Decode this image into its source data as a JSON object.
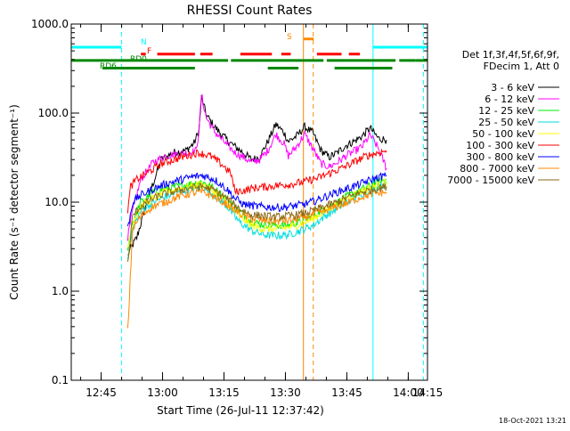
{
  "chart_data": {
    "type": "line",
    "title": "RHESSI Count Rates",
    "xlabel": "Start Time (26-Jul-11 12:37:42)",
    "ylabel": "Count Rate (s⁻¹ detector segment⁻¹)",
    "yscale": "log",
    "ylim": [
      0.1,
      1000
    ],
    "xlim_minutes": [
      0,
      87
    ],
    "xticks": [
      {
        "t": 7.3,
        "label": "12:45"
      },
      {
        "t": 22.3,
        "label": "13:00"
      },
      {
        "t": 37.3,
        "label": "13:15"
      },
      {
        "t": 52.3,
        "label": "13:30"
      },
      {
        "t": 67.3,
        "label": "13:45"
      },
      {
        "t": 82.3,
        "label": "14:00"
      },
      {
        "t": 97.3,
        "label": "14:15"
      }
    ],
    "yticks": [
      {
        "v": 0.1,
        "label": "0.1"
      },
      {
        "v": 1,
        "label": "1.0"
      },
      {
        "v": 10,
        "label": "10.0"
      },
      {
        "v": 100,
        "label": "100.0"
      },
      {
        "v": 1000,
        "label": "1000.0"
      }
    ],
    "grid": false,
    "legend_position": "right",
    "legend_header": [
      "Det 1f,3f,4f,5f,6f,9f,",
      "FDecim 1, Att 0"
    ],
    "series": [
      {
        "name": "3 - 6 keV",
        "color": "#000000",
        "x": [
          13.8,
          14.5,
          16,
          19,
          22,
          25,
          28,
          30,
          31.2,
          31.8,
          33,
          35,
          38,
          40,
          42,
          44,
          46,
          48,
          50,
          52,
          53,
          55,
          57,
          59,
          61,
          63,
          65,
          67,
          69,
          71,
          73,
          75,
          77
        ],
        "y": [
          2.5,
          3,
          4,
          12,
          30,
          36,
          38,
          46,
          64,
          150,
          95,
          70,
          50,
          42,
          36,
          30,
          32,
          48,
          75,
          60,
          48,
          55,
          70,
          60,
          38,
          32,
          36,
          43,
          48,
          55,
          68,
          52,
          50
        ]
      },
      {
        "name": "6 - 12 keV",
        "color": "#ff00ff",
        "x": [
          13.8,
          15,
          17,
          20,
          23,
          26,
          29,
          30.5,
          31.2,
          31.8,
          33,
          35,
          38,
          40,
          42,
          44,
          46,
          48,
          50,
          52,
          53,
          55,
          57,
          59,
          61,
          63,
          65,
          67,
          69,
          71,
          73,
          75,
          77
        ],
        "y": [
          4,
          8,
          18,
          28,
          33,
          35,
          36,
          38,
          64,
          160,
          88,
          62,
          44,
          36,
          32,
          28,
          30,
          38,
          58,
          45,
          33,
          42,
          58,
          40,
          27,
          25,
          28,
          33,
          37,
          42,
          57,
          40,
          24
        ]
      },
      {
        "name": "12 - 25 keV",
        "color": "#00ee00",
        "x": [
          13.8,
          15,
          17,
          20,
          23,
          26,
          29,
          32,
          35,
          38,
          41,
          44,
          47,
          50,
          53,
          56,
          59,
          62,
          65,
          68,
          71,
          74,
          77
        ],
        "y": [
          3,
          6,
          10,
          13,
          14,
          15,
          16,
          17,
          14,
          11,
          8,
          6,
          5.6,
          5.5,
          5.5,
          6,
          7,
          8.5,
          10,
          12,
          14,
          16,
          18
        ]
      },
      {
        "name": "25 - 50 keV",
        "color": "#00dddd",
        "x": [
          13.8,
          15,
          17,
          20,
          23,
          26,
          29,
          32,
          35,
          38,
          41,
          44,
          47,
          50,
          53,
          56,
          59,
          62,
          65,
          68,
          71,
          74,
          77
        ],
        "y": [
          2.5,
          5,
          8,
          10,
          11.5,
          13,
          14,
          15,
          12,
          9,
          6,
          4.8,
          4.3,
          4.2,
          4.3,
          4.8,
          5.5,
          7,
          8.5,
          10.5,
          12.5,
          14.5,
          16
        ]
      },
      {
        "name": "50 - 100 keV",
        "color": "#ffff00",
        "x": [
          13.8,
          15,
          17,
          20,
          23,
          26,
          29,
          32,
          35,
          38,
          41,
          44,
          47,
          50,
          53,
          56,
          59,
          62,
          65,
          68,
          71,
          74,
          77
        ],
        "y": [
          3,
          6,
          9,
          11,
          13,
          14,
          15,
          16,
          13,
          10,
          7,
          5.5,
          5,
          5,
          5.2,
          5.7,
          6.5,
          8,
          9.5,
          11.5,
          13.5,
          15,
          17
        ]
      },
      {
        "name": "100 - 300 keV",
        "color": "#ff0000",
        "x": [
          13.8,
          14.5,
          16,
          19,
          22,
          25,
          28,
          31,
          34,
          37,
          39,
          40,
          42,
          45,
          48,
          51,
          54,
          57,
          60,
          63,
          66,
          69,
          72,
          75,
          77
        ],
        "y": [
          8,
          15,
          18,
          22,
          27,
          30,
          33,
          36,
          33,
          26,
          21,
          13,
          13.5,
          14.5,
          15,
          15.5,
          16,
          17,
          18.5,
          21,
          24,
          28,
          33,
          36,
          38
        ]
      },
      {
        "name": "300 - 800 keV",
        "color": "#0000ff",
        "x": [
          13.8,
          15,
          17,
          20,
          23,
          26,
          29,
          32,
          35,
          38,
          40,
          42,
          45,
          48,
          51,
          54,
          57,
          60,
          63,
          66,
          69,
          72,
          75,
          77
        ],
        "y": [
          5,
          10,
          12,
          14,
          16,
          17.5,
          19,
          20,
          18,
          14,
          11,
          9.5,
          9,
          8.8,
          8.7,
          9,
          9.5,
          10.5,
          12,
          13.5,
          15,
          17,
          19,
          20
        ]
      },
      {
        "name": "800 - 7000 keV",
        "color": "#ff8800",
        "x": [
          13.8,
          15,
          17,
          20,
          23,
          26,
          29,
          32,
          35,
          38,
          41,
          44,
          47,
          50,
          53,
          56,
          59,
          62,
          65,
          68,
          71,
          74,
          77
        ],
        "y": [
          0.35,
          5,
          7,
          9,
          10,
          11.5,
          12.5,
          13,
          11.5,
          9.5,
          7.5,
          6.5,
          6.2,
          6.1,
          6.2,
          6.6,
          7.2,
          8,
          9,
          10,
          11.5,
          12.5,
          13
        ]
      },
      {
        "name": "7000 - 15000 keV",
        "color": "#8b6914",
        "x": [
          13.8,
          15,
          17,
          20,
          23,
          26,
          29,
          32,
          35,
          38,
          41,
          44,
          47,
          50,
          53,
          56,
          59,
          62,
          65,
          68,
          71,
          74,
          77
        ],
        "y": [
          2,
          7,
          9,
          11,
          12.5,
          13.5,
          14.5,
          15,
          13.5,
          11,
          8.5,
          7.2,
          7,
          6.8,
          7,
          7.3,
          8,
          9,
          10,
          11.5,
          13,
          14,
          15
        ]
      }
    ],
    "status_flags": [
      {
        "label": "N",
        "color": "#00ffff",
        "y": 550,
        "segments": [
          [
            0,
            12.3,
            0
          ],
          [
            73.7,
            87,
            0
          ]
        ]
      },
      {
        "label": "F",
        "color": "#ff0000",
        "y": 460,
        "segments": [
          [
            17,
            18.2,
            0
          ],
          [
            21,
            30.2,
            0
          ],
          [
            31.5,
            34.5,
            0
          ],
          [
            41.3,
            49,
            0
          ],
          [
            51.3,
            53.6,
            0
          ],
          [
            60,
            66,
            0
          ],
          [
            67.8,
            70.5,
            0
          ]
        ]
      },
      {
        "label": "S",
        "color": "#ff8800",
        "y": 680,
        "segments": [
          [
            56.7,
            59.2,
            0
          ]
        ]
      },
      {
        "label": "RD0",
        "color": "#008800",
        "y": 390,
        "segments": [
          [
            0,
            38.3,
            0
          ],
          [
            39,
            61.6,
            0
          ],
          [
            62.4,
            79.2,
            0
          ],
          [
            80.1,
            84,
            0
          ],
          [
            84,
            87,
            0
          ]
        ]
      },
      {
        "label": "RD6",
        "color": "#008800",
        "y": 320,
        "segments": [
          [
            7.6,
            30.2,
            0
          ],
          [
            48,
            55.5,
            0
          ],
          [
            64.3,
            78.4,
            0
          ]
        ]
      }
    ],
    "markers": [
      {
        "t": 0,
        "color": "#00ffff",
        "style": "solid"
      },
      {
        "t": 12.3,
        "color": "#00ffff",
        "style": "dashed"
      },
      {
        "t": 56.7,
        "color": "#ff8800",
        "style": "solid"
      },
      {
        "t": 59.1,
        "color": "#ff8800",
        "style": "dashed"
      },
      {
        "t": 73.7,
        "color": "#00ffff",
        "style": "solid"
      },
      {
        "t": 86,
        "color": "#00ffff",
        "style": "dashed"
      }
    ],
    "footer_timestamp": "18-Oct-2021 13:21"
  }
}
